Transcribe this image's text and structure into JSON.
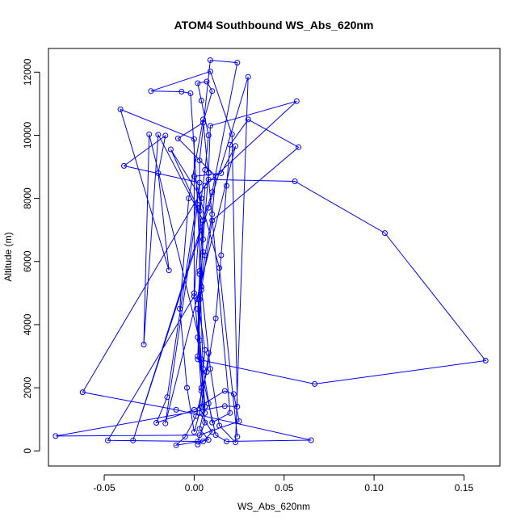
{
  "chart_data": {
    "type": "line",
    "title": "ATOM4 Southbound WS_Abs_620nm",
    "xlabel": "WS_Abs_620nm",
    "ylabel": "Altitude (m)",
    "xlim": [
      -0.081,
      0.17
    ],
    "ylim": [
      -480,
      12750
    ],
    "xticks": [
      -0.05,
      0.0,
      0.05,
      0.1,
      0.15
    ],
    "xtick_labels": [
      "-0.05",
      "0.00",
      "0.05",
      "0.10",
      "0.15"
    ],
    "yticks": [
      0,
      2000,
      4000,
      6000,
      8000,
      10000,
      12000
    ],
    "ytick_labels": [
      "0",
      "2000",
      "4000",
      "6000",
      "8000",
      "10000",
      "12000"
    ],
    "grid": false,
    "legend": "none",
    "series_color": "#0000ff",
    "marker": "open-circle",
    "series": [
      {
        "points": [
          [
            0.002,
            200
          ],
          [
            0.005,
            300
          ],
          [
            0.01,
            600
          ],
          [
            0.003,
            1200
          ],
          [
            0.004,
            2000
          ],
          [
            0.006,
            3200
          ],
          [
            0.002,
            4800
          ],
          [
            0.005,
            6300
          ],
          [
            0.003,
            7600
          ],
          [
            0.006,
            8900
          ],
          [
            0.008,
            10000
          ],
          [
            0.004,
            11100
          ],
          [
            0.002,
            11650
          ],
          [
            0.007,
            11700
          ],
          [
            0.01,
            11400
          ],
          [
            0.005,
            10400
          ],
          [
            -0.009,
            9900
          ],
          [
            0.012,
            8700
          ],
          [
            0.01,
            7500
          ],
          [
            0.006,
            6200
          ],
          [
            0.002,
            4500
          ],
          [
            0.004,
            2900
          ],
          [
            0.006,
            1400
          ],
          [
            0.003,
            700
          ],
          [
            0.008,
            350
          ],
          [
            -0.01,
            180
          ],
          [
            -0.005,
            450
          ],
          [
            0.001,
            1100
          ],
          [
            0.007,
            2500
          ],
          [
            0.012,
            4200
          ],
          [
            0.015,
            6200
          ],
          [
            0.018,
            8400
          ],
          [
            0.02,
            9700
          ],
          [
            0.03,
            10500
          ],
          [
            0.058,
            9620
          ],
          [
            0.01,
            7300
          ],
          [
            0.004,
            5100
          ],
          [
            0.002,
            3000
          ],
          [
            0.008,
            1500
          ],
          [
            0.012,
            500
          ],
          [
            0.018,
            300
          ],
          [
            0.065,
            340
          ],
          [
            -0.01,
            1300
          ],
          [
            -0.062,
            1860
          ],
          [
            0.008,
            8600
          ],
          [
            0.056,
            8540
          ],
          [
            0.106,
            6900
          ],
          [
            0.162,
            2860
          ],
          [
            0.067,
            2120
          ],
          [
            0.002,
            2900
          ],
          [
            0.003,
            4800
          ],
          [
            0.005,
            6700
          ],
          [
            0.008,
            8800
          ],
          [
            0.009,
            10300
          ],
          [
            0.057,
            11080
          ],
          [
            0.006,
            8400
          ],
          [
            0.003,
            5600
          ],
          [
            0.002,
            3600
          ],
          [
            0.004,
            1900
          ],
          [
            0.006,
            900
          ],
          [
            0.002,
            300
          ],
          [
            -0.048,
            330
          ],
          [
            0.0,
            4900
          ],
          [
            0.004,
            8000
          ],
          [
            -0.013,
            9550
          ],
          [
            0.002,
            7700
          ],
          [
            0.004,
            5200
          ],
          [
            0.009,
            2600
          ],
          [
            0.014,
            800
          ],
          [
            0.023,
            270
          ],
          [
            0.03,
            11850
          ],
          [
            0.008,
            7700
          ],
          [
            -0.034,
            330
          ],
          [
            0.01,
            8200
          ],
          [
            0.024,
            12300
          ],
          [
            0.009,
            12380
          ],
          [
            0.003,
            9200
          ],
          [
            0.003,
            5700
          ],
          [
            0.005,
            2600
          ],
          [
            0.01,
            900
          ],
          [
            0.02,
            1200
          ],
          [
            0.005,
            10500
          ],
          [
            -0.003,
            8000
          ],
          [
            -0.008,
            4500
          ],
          [
            -0.004,
            2000
          ],
          [
            0.0,
            600
          ],
          [
            0.004,
            1400
          ],
          [
            0.008,
            3100
          ],
          [
            0.004,
            5200
          ],
          [
            0.005,
            7300
          ],
          [
            -0.02,
            10020
          ],
          [
            -0.028,
            3370
          ],
          [
            -0.025,
            10030
          ],
          [
            0.003,
            3500
          ],
          [
            0.006,
            1200
          ],
          [
            0.0,
            5000
          ],
          [
            0.0,
            9880
          ],
          [
            -0.041,
            10820
          ],
          [
            -0.014,
            5720
          ],
          [
            -0.02,
            8800
          ],
          [
            -0.016,
            9990
          ],
          [
            -0.039,
            9030
          ],
          [
            0.003,
            8500
          ],
          [
            -0.015,
            1700
          ],
          [
            -0.021,
            890
          ],
          [
            0.0,
            1300
          ],
          [
            0.017,
            1900
          ],
          [
            0.022,
            1800
          ],
          [
            0.025,
            940
          ],
          [
            0.003,
            500
          ],
          [
            -0.077,
            470
          ],
          [
            0.017,
            1420
          ],
          [
            0.024,
            1400
          ],
          [
            0.021,
            10030
          ],
          [
            0.009,
            12020
          ],
          [
            -0.024,
            11400
          ],
          [
            -0.007,
            11380
          ],
          [
            -0.002,
            11330
          ],
          [
            0.002,
            7800
          ],
          [
            -0.016,
            870
          ],
          [
            0.023,
            9660
          ],
          [
            0.015,
            8800
          ],
          [
            0.0,
            8700
          ],
          [
            0.014,
            5800
          ],
          [
            0.024,
            450
          ]
        ]
      }
    ]
  }
}
